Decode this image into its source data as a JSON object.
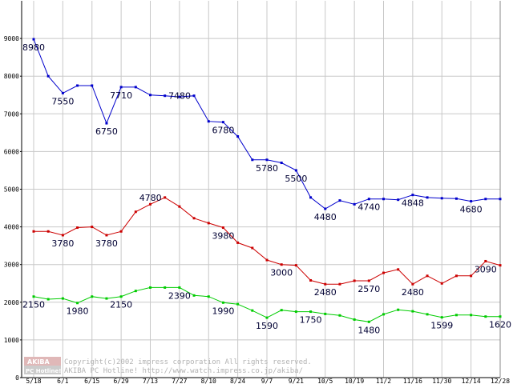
{
  "chart_data": {
    "type": "line",
    "title": "",
    "xlabel": "",
    "ylabel": "",
    "ylim": [
      0,
      10000
    ],
    "yticks": [
      "0",
      "1000",
      "2000",
      "3000",
      "4000",
      "5000",
      "6000",
      "7000",
      "8000",
      "9000"
    ],
    "x_tick_labels": [
      "5/18",
      "6/1",
      "6/15",
      "6/29",
      "7/13",
      "7/27",
      "8/10",
      "8/24",
      "9/7",
      "9/21",
      "10/5",
      "10/19",
      "11/2",
      "11/16",
      "11/30",
      "12/14",
      "12/28"
    ],
    "grid": true,
    "series": [
      {
        "color": "#0000cc",
        "values": [
          8980,
          8000,
          7550,
          7750,
          7750,
          6750,
          7710,
          7710,
          7500,
          7480,
          7450,
          7480,
          6800,
          6780,
          6400,
          5780,
          5780,
          5700,
          5500,
          4780,
          4480,
          4700,
          4600,
          4740,
          4740,
          4720,
          4848,
          4780,
          4760,
          4750,
          4680,
          4740,
          4740
        ],
        "labels": [
          {
            "i": 0,
            "text": "8980",
            "pos": "below"
          },
          {
            "i": 2,
            "text": "7550",
            "pos": "below"
          },
          {
            "i": 5,
            "text": "6750",
            "pos": "below"
          },
          {
            "i": 6,
            "text": "7710",
            "pos": "below"
          },
          {
            "i": 11,
            "text": "7480",
            "pos": "left"
          },
          {
            "i": 13,
            "text": "6780",
            "pos": "below"
          },
          {
            "i": 16,
            "text": "5780",
            "pos": "below"
          },
          {
            "i": 18,
            "text": "5500",
            "pos": "below"
          },
          {
            "i": 20,
            "text": "4480",
            "pos": "below"
          },
          {
            "i": 23,
            "text": "4740",
            "pos": "below"
          },
          {
            "i": 26,
            "text": "4848",
            "pos": "below"
          },
          {
            "i": 30,
            "text": "4680",
            "pos": "below"
          }
        ]
      },
      {
        "color": "#cc0000",
        "values": [
          3880,
          3880,
          3780,
          3980,
          4000,
          3780,
          3880,
          4400,
          4600,
          4780,
          4540,
          4230,
          4100,
          3980,
          3580,
          3440,
          3120,
          3000,
          2980,
          2580,
          2480,
          2480,
          2570,
          2570,
          2780,
          2870,
          2480,
          2700,
          2500,
          2700,
          2700,
          3090,
          2980
        ],
        "labels": [
          {
            "i": 2,
            "text": "3780",
            "pos": "below"
          },
          {
            "i": 5,
            "text": "3780",
            "pos": "below"
          },
          {
            "i": 9,
            "text": "4780",
            "pos": "left"
          },
          {
            "i": 13,
            "text": "3980",
            "pos": "below"
          },
          {
            "i": 17,
            "text": "3000",
            "pos": "below"
          },
          {
            "i": 20,
            "text": "2480",
            "pos": "below"
          },
          {
            "i": 23,
            "text": "2570",
            "pos": "below"
          },
          {
            "i": 26,
            "text": "2480",
            "pos": "below"
          },
          {
            "i": 31,
            "text": "3090",
            "pos": "below"
          }
        ]
      },
      {
        "color": "#00cc00",
        "values": [
          2150,
          2080,
          2100,
          1980,
          2150,
          2100,
          2150,
          2300,
          2390,
          2390,
          2390,
          2180,
          2150,
          1990,
          1950,
          1780,
          1590,
          1790,
          1750,
          1750,
          1690,
          1650,
          1540,
          1480,
          1680,
          1800,
          1760,
          1680,
          1599,
          1660,
          1660,
          1620,
          1620
        ],
        "labels": [
          {
            "i": 0,
            "text": "2150",
            "pos": "below"
          },
          {
            "i": 3,
            "text": "1980",
            "pos": "below"
          },
          {
            "i": 6,
            "text": "2150",
            "pos": "below"
          },
          {
            "i": 10,
            "text": "2390",
            "pos": "below"
          },
          {
            "i": 13,
            "text": "1990",
            "pos": "below"
          },
          {
            "i": 16,
            "text": "1590",
            "pos": "below"
          },
          {
            "i": 19,
            "text": "1750",
            "pos": "below"
          },
          {
            "i": 23,
            "text": "1480",
            "pos": "below"
          },
          {
            "i": 28,
            "text": "1599",
            "pos": "below"
          },
          {
            "i": 32,
            "text": "1620",
            "pos": "below"
          }
        ]
      }
    ]
  },
  "watermark": {
    "logo_top": "AKIBA",
    "logo_bottom": "PC Hotline!",
    "line1": "Copyright(c)2002 impress corporation All rights reserved.",
    "line2": "AKIBA PC Hotline!  http://www.watch.impress.co.jp/akiba/"
  }
}
